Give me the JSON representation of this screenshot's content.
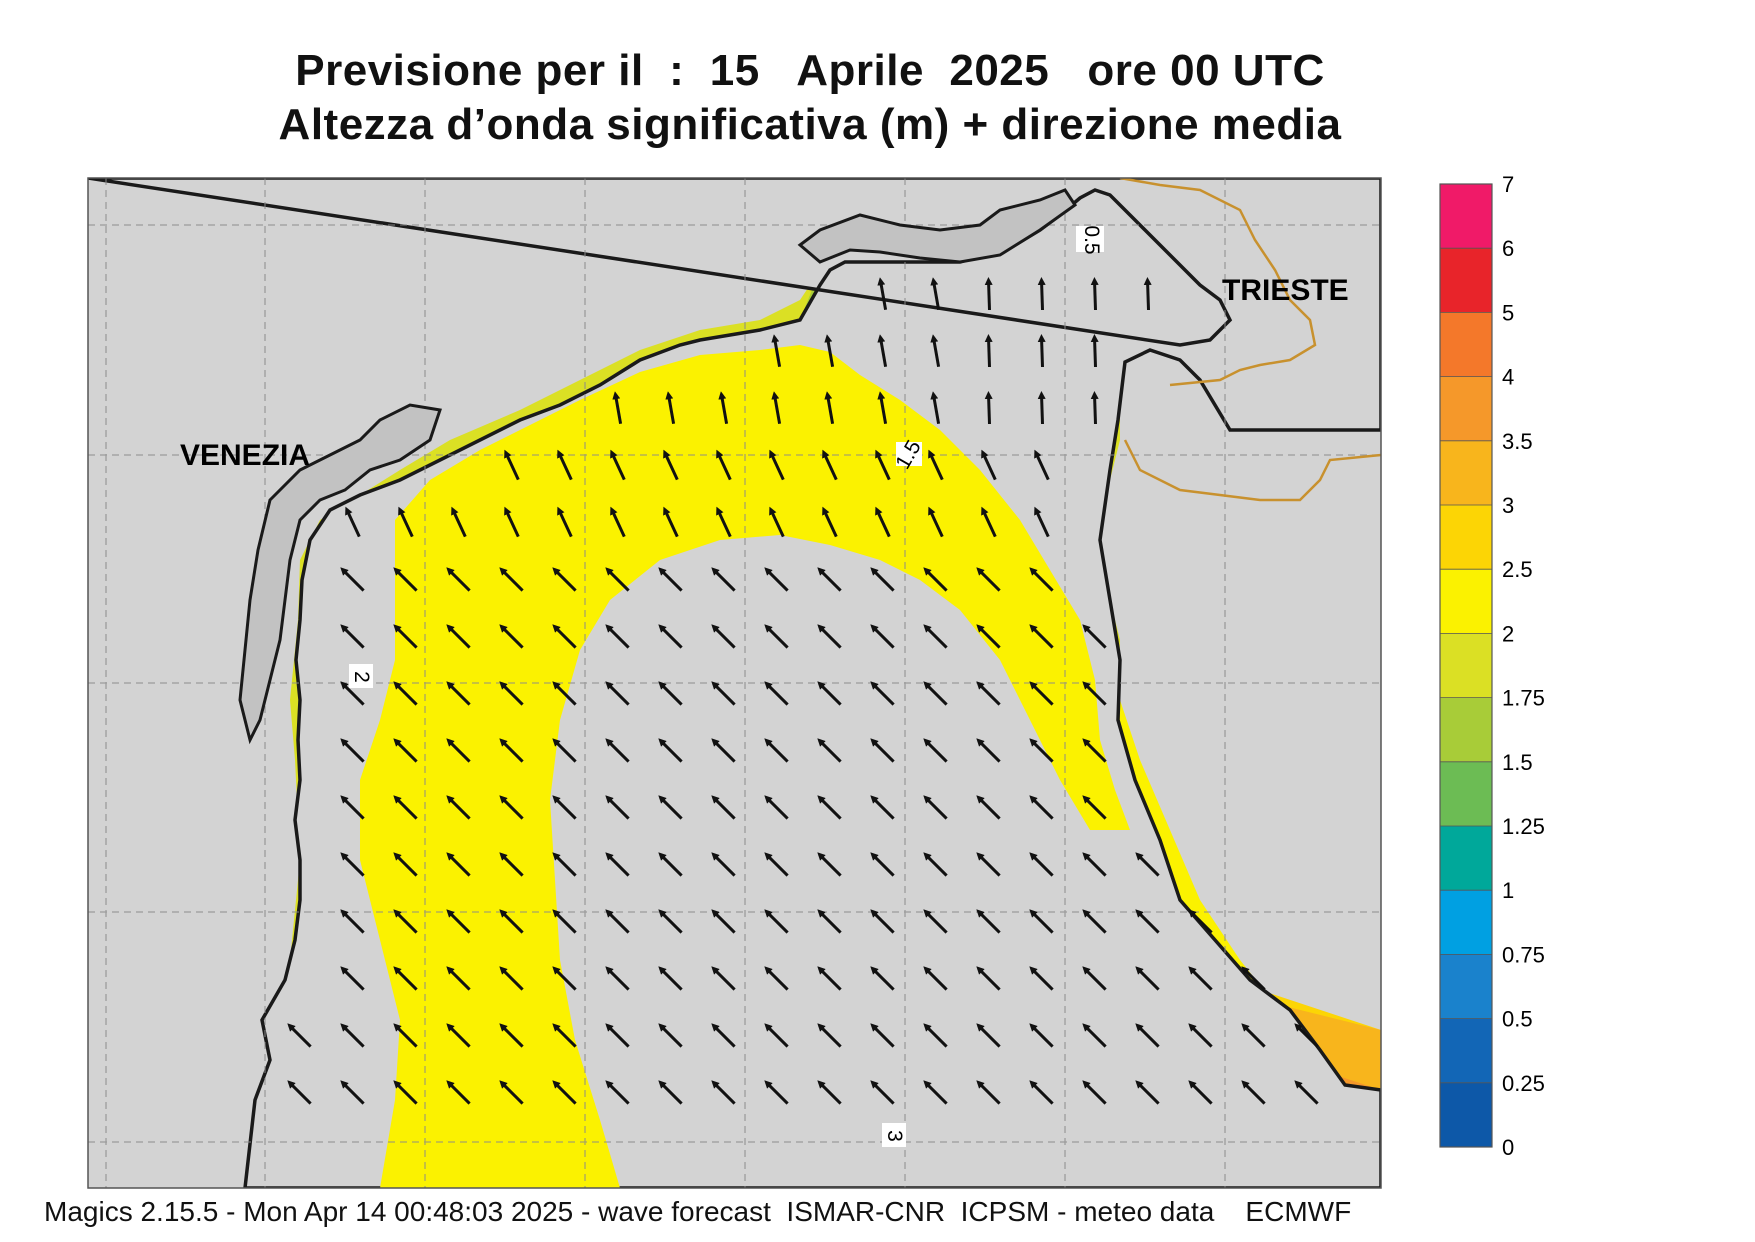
{
  "header": {
    "line1": "Previsione per il  :  15   Aprile  2025   ore 00 UTC",
    "line2": "Altezza d’onda significativa (m) + direzione media"
  },
  "map": {
    "cities": [
      "VENEZIA",
      "TRIESTE"
    ],
    "contour_labels": [
      "0.5",
      "1.5",
      "2",
      "3"
    ],
    "arrow_direction": "north-west",
    "land_color": "#d3d3d3",
    "coast_color": "#1a1a1a",
    "border_color": "#c8912e"
  },
  "legend": {
    "labels": [
      "7",
      "6",
      "5",
      "4",
      "3.5",
      "3",
      "2.5",
      "2",
      "1.75",
      "1.5",
      "1.25",
      "1",
      "0.75",
      "0.5",
      "0.25",
      "0"
    ],
    "colors": [
      "#f01a68",
      "#e8242a",
      "#f4782a",
      "#f5982a",
      "#f8b51c",
      "#fcd505",
      "#fbf200",
      "#dbe024",
      "#a8cc38",
      "#6cbc54",
      "#00a89a",
      "#00a0e2",
      "#1a82cc",
      "#1266b6",
      "#0d58a8"
    ]
  },
  "footer": {
    "text": "Magics 2.15.5 - Mon Apr 14 00:48:03 2025 - wave forecast  ISMAR-CNR  ICPSM - meteo data    ECMWF"
  }
}
